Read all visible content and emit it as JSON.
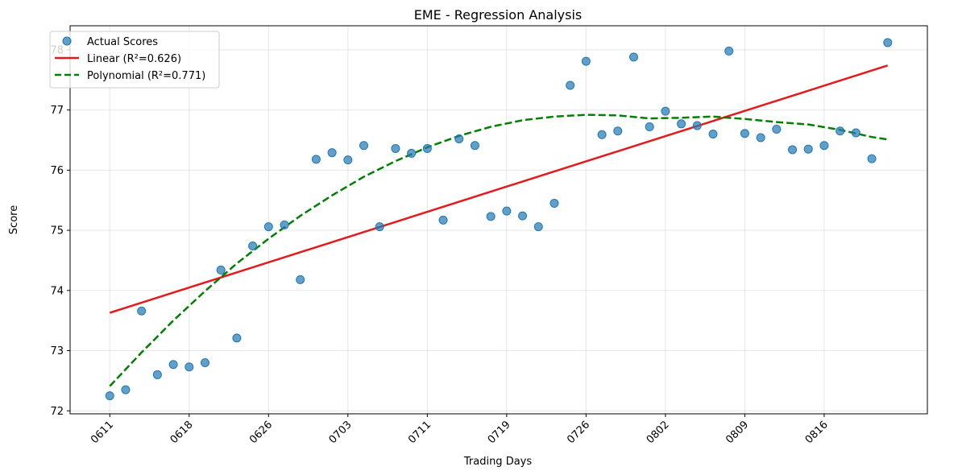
{
  "chart_data": {
    "type": "scatter",
    "title": "EME - Regression Analysis",
    "xlabel": "Trading Days",
    "ylabel": "Score",
    "ylim": [
      71.95,
      78.4
    ],
    "xlim": [
      -2.5,
      51.5
    ],
    "grid": true,
    "legend_position": "upper-left",
    "x_tick_positions": [
      0,
      5,
      10,
      15,
      20,
      25,
      30,
      35,
      40,
      45
    ],
    "x_tick_labels": [
      "0611",
      "0618",
      "0626",
      "0703",
      "0711",
      "0719",
      "0726",
      "0802",
      "0809",
      "0816"
    ],
    "y_ticks": [
      72,
      73,
      74,
      75,
      76,
      77,
      78
    ],
    "series": [
      {
        "name": "Actual Scores",
        "kind": "scatter",
        "color": "#1f77b4",
        "x": [
          0,
          1,
          2,
          3,
          4,
          5,
          6,
          7,
          8,
          9,
          10,
          11,
          12,
          13,
          14,
          15,
          16,
          17,
          18,
          19,
          20,
          21,
          22,
          23,
          24,
          25,
          26,
          27,
          28,
          29,
          30,
          31,
          32,
          33,
          34,
          35,
          36,
          37,
          38,
          39,
          40,
          41,
          42,
          43,
          44,
          45,
          46,
          47,
          48,
          49
        ],
        "values": [
          72.25,
          72.35,
          73.66,
          72.6,
          72.77,
          72.73,
          72.8,
          74.34,
          73.21,
          74.74,
          75.06,
          75.09,
          74.18,
          76.18,
          76.29,
          76.17,
          76.41,
          75.06,
          76.36,
          76.28,
          76.36,
          75.17,
          76.52,
          76.41,
          75.23,
          75.32,
          75.24,
          75.06,
          75.45,
          77.41,
          77.81,
          76.59,
          76.65,
          77.88,
          76.72,
          76.98,
          76.77,
          76.74,
          76.6,
          77.98,
          76.61,
          76.54,
          76.68,
          76.34,
          76.35,
          76.41,
          76.65,
          76.62,
          76.19,
          78.12
        ]
      },
      {
        "name": "Linear (R²=0.626)",
        "kind": "line",
        "style": "solid",
        "color": "#e41a1c",
        "x": [
          0,
          49
        ],
        "values": [
          73.63,
          77.74
        ]
      },
      {
        "name": "Polynomial (R²=0.771)",
        "kind": "line",
        "style": "dashed",
        "color": "#008000",
        "x": [
          0,
          2,
          4,
          6,
          8,
          10,
          12,
          14,
          16,
          18,
          20,
          22,
          24,
          26,
          28,
          30,
          32,
          34,
          36,
          38,
          40,
          42,
          44,
          46,
          48,
          49
        ],
        "values": [
          72.41,
          72.97,
          73.5,
          73.99,
          74.45,
          74.86,
          75.24,
          75.58,
          75.89,
          76.15,
          76.38,
          76.57,
          76.72,
          76.83,
          76.89,
          76.92,
          76.91,
          76.86,
          76.87,
          76.89,
          76.85,
          76.8,
          76.76,
          76.67,
          76.55,
          76.51
        ]
      }
    ]
  }
}
